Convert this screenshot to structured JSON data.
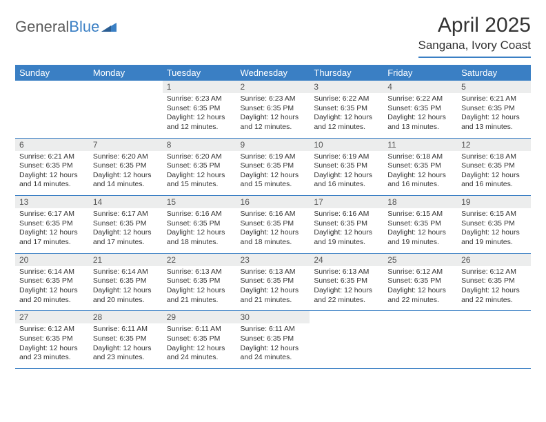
{
  "brand": {
    "part1": "General",
    "part2": "Blue"
  },
  "title": "April 2025",
  "location": "Sangana, Ivory Coast",
  "colors": {
    "accent": "#3a7fc4",
    "header_bg": "#3a7fc4",
    "header_text": "#ffffff",
    "daynum_bg": "#eceded",
    "text": "#333333",
    "logo_gray": "#5a5a5a"
  },
  "weekdays": [
    "Sunday",
    "Monday",
    "Tuesday",
    "Wednesday",
    "Thursday",
    "Friday",
    "Saturday"
  ],
  "weeks": [
    [
      {
        "empty": true
      },
      {
        "empty": true
      },
      {
        "day": "1",
        "sunrise": "Sunrise: 6:23 AM",
        "sunset": "Sunset: 6:35 PM",
        "daylight": "Daylight: 12 hours and 12 minutes."
      },
      {
        "day": "2",
        "sunrise": "Sunrise: 6:23 AM",
        "sunset": "Sunset: 6:35 PM",
        "daylight": "Daylight: 12 hours and 12 minutes."
      },
      {
        "day": "3",
        "sunrise": "Sunrise: 6:22 AM",
        "sunset": "Sunset: 6:35 PM",
        "daylight": "Daylight: 12 hours and 12 minutes."
      },
      {
        "day": "4",
        "sunrise": "Sunrise: 6:22 AM",
        "sunset": "Sunset: 6:35 PM",
        "daylight": "Daylight: 12 hours and 13 minutes."
      },
      {
        "day": "5",
        "sunrise": "Sunrise: 6:21 AM",
        "sunset": "Sunset: 6:35 PM",
        "daylight": "Daylight: 12 hours and 13 minutes."
      }
    ],
    [
      {
        "day": "6",
        "sunrise": "Sunrise: 6:21 AM",
        "sunset": "Sunset: 6:35 PM",
        "daylight": "Daylight: 12 hours and 14 minutes."
      },
      {
        "day": "7",
        "sunrise": "Sunrise: 6:20 AM",
        "sunset": "Sunset: 6:35 PM",
        "daylight": "Daylight: 12 hours and 14 minutes."
      },
      {
        "day": "8",
        "sunrise": "Sunrise: 6:20 AM",
        "sunset": "Sunset: 6:35 PM",
        "daylight": "Daylight: 12 hours and 15 minutes."
      },
      {
        "day": "9",
        "sunrise": "Sunrise: 6:19 AM",
        "sunset": "Sunset: 6:35 PM",
        "daylight": "Daylight: 12 hours and 15 minutes."
      },
      {
        "day": "10",
        "sunrise": "Sunrise: 6:19 AM",
        "sunset": "Sunset: 6:35 PM",
        "daylight": "Daylight: 12 hours and 16 minutes."
      },
      {
        "day": "11",
        "sunrise": "Sunrise: 6:18 AM",
        "sunset": "Sunset: 6:35 PM",
        "daylight": "Daylight: 12 hours and 16 minutes."
      },
      {
        "day": "12",
        "sunrise": "Sunrise: 6:18 AM",
        "sunset": "Sunset: 6:35 PM",
        "daylight": "Daylight: 12 hours and 16 minutes."
      }
    ],
    [
      {
        "day": "13",
        "sunrise": "Sunrise: 6:17 AM",
        "sunset": "Sunset: 6:35 PM",
        "daylight": "Daylight: 12 hours and 17 minutes."
      },
      {
        "day": "14",
        "sunrise": "Sunrise: 6:17 AM",
        "sunset": "Sunset: 6:35 PM",
        "daylight": "Daylight: 12 hours and 17 minutes."
      },
      {
        "day": "15",
        "sunrise": "Sunrise: 6:16 AM",
        "sunset": "Sunset: 6:35 PM",
        "daylight": "Daylight: 12 hours and 18 minutes."
      },
      {
        "day": "16",
        "sunrise": "Sunrise: 6:16 AM",
        "sunset": "Sunset: 6:35 PM",
        "daylight": "Daylight: 12 hours and 18 minutes."
      },
      {
        "day": "17",
        "sunrise": "Sunrise: 6:16 AM",
        "sunset": "Sunset: 6:35 PM",
        "daylight": "Daylight: 12 hours and 19 minutes."
      },
      {
        "day": "18",
        "sunrise": "Sunrise: 6:15 AM",
        "sunset": "Sunset: 6:35 PM",
        "daylight": "Daylight: 12 hours and 19 minutes."
      },
      {
        "day": "19",
        "sunrise": "Sunrise: 6:15 AM",
        "sunset": "Sunset: 6:35 PM",
        "daylight": "Daylight: 12 hours and 19 minutes."
      }
    ],
    [
      {
        "day": "20",
        "sunrise": "Sunrise: 6:14 AM",
        "sunset": "Sunset: 6:35 PM",
        "daylight": "Daylight: 12 hours and 20 minutes."
      },
      {
        "day": "21",
        "sunrise": "Sunrise: 6:14 AM",
        "sunset": "Sunset: 6:35 PM",
        "daylight": "Daylight: 12 hours and 20 minutes."
      },
      {
        "day": "22",
        "sunrise": "Sunrise: 6:13 AM",
        "sunset": "Sunset: 6:35 PM",
        "daylight": "Daylight: 12 hours and 21 minutes."
      },
      {
        "day": "23",
        "sunrise": "Sunrise: 6:13 AM",
        "sunset": "Sunset: 6:35 PM",
        "daylight": "Daylight: 12 hours and 21 minutes."
      },
      {
        "day": "24",
        "sunrise": "Sunrise: 6:13 AM",
        "sunset": "Sunset: 6:35 PM",
        "daylight": "Daylight: 12 hours and 22 minutes."
      },
      {
        "day": "25",
        "sunrise": "Sunrise: 6:12 AM",
        "sunset": "Sunset: 6:35 PM",
        "daylight": "Daylight: 12 hours and 22 minutes."
      },
      {
        "day": "26",
        "sunrise": "Sunrise: 6:12 AM",
        "sunset": "Sunset: 6:35 PM",
        "daylight": "Daylight: 12 hours and 22 minutes."
      }
    ],
    [
      {
        "day": "27",
        "sunrise": "Sunrise: 6:12 AM",
        "sunset": "Sunset: 6:35 PM",
        "daylight": "Daylight: 12 hours and 23 minutes."
      },
      {
        "day": "28",
        "sunrise": "Sunrise: 6:11 AM",
        "sunset": "Sunset: 6:35 PM",
        "daylight": "Daylight: 12 hours and 23 minutes."
      },
      {
        "day": "29",
        "sunrise": "Sunrise: 6:11 AM",
        "sunset": "Sunset: 6:35 PM",
        "daylight": "Daylight: 12 hours and 24 minutes."
      },
      {
        "day": "30",
        "sunrise": "Sunrise: 6:11 AM",
        "sunset": "Sunset: 6:35 PM",
        "daylight": "Daylight: 12 hours and 24 minutes."
      },
      {
        "empty": true
      },
      {
        "empty": true
      },
      {
        "empty": true
      }
    ]
  ]
}
